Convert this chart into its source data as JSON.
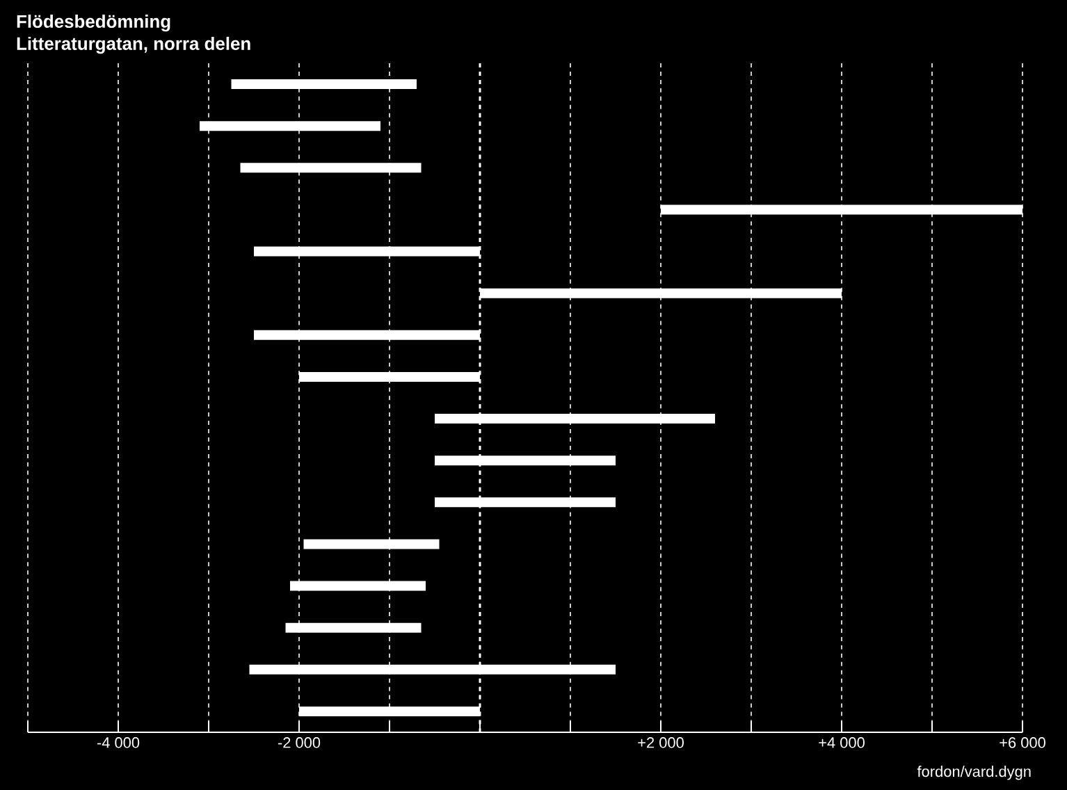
{
  "chart_data": {
    "type": "bar",
    "orientation": "horizontal",
    "title": "Flödesbedömning",
    "subtitle": "Litteraturgatan, norra delen",
    "xlabel": "fordon/vard.dygn",
    "categories": [
      null,
      null,
      null,
      null,
      null,
      null,
      null,
      null,
      null,
      null,
      null,
      null,
      null,
      null,
      null,
      null
    ],
    "base": [
      -2750,
      -3100,
      -2650,
      2000,
      -2500,
      0,
      -2500,
      -2000,
      -500,
      -500,
      -500,
      -1950,
      -2100,
      -2150,
      -2550,
      -2000
    ],
    "values": [
      2050,
      2000,
      2000,
      4000,
      2500,
      4000,
      2500,
      2000,
      3100,
      2000,
      2000,
      1500,
      1500,
      1500,
      4050,
      2000
    ],
    "color": "#ffffff",
    "xlim": [
      -5000,
      6000
    ],
    "xticks": [
      {
        "value": -5000,
        "label": null
      },
      {
        "value": -4000,
        "label": "-4 000"
      },
      {
        "value": -3000,
        "label": null
      },
      {
        "value": -2000,
        "label": "-2 000"
      },
      {
        "value": -1000,
        "label": null
      },
      {
        "value": 0,
        "label": null
      },
      {
        "value": 1000,
        "label": null
      },
      {
        "value": 2000,
        "label": "+2 000"
      },
      {
        "value": 3000,
        "label": null
      },
      {
        "value": 4000,
        "label": "+4 000"
      },
      {
        "value": 5000,
        "label": null
      },
      {
        "value": 6000,
        "label": "+6 000"
      }
    ],
    "grid": "x",
    "ref_lines": [
      {
        "axis": "x",
        "value": 0,
        "color": "#ffffff",
        "line_style": "dashed"
      }
    ]
  }
}
